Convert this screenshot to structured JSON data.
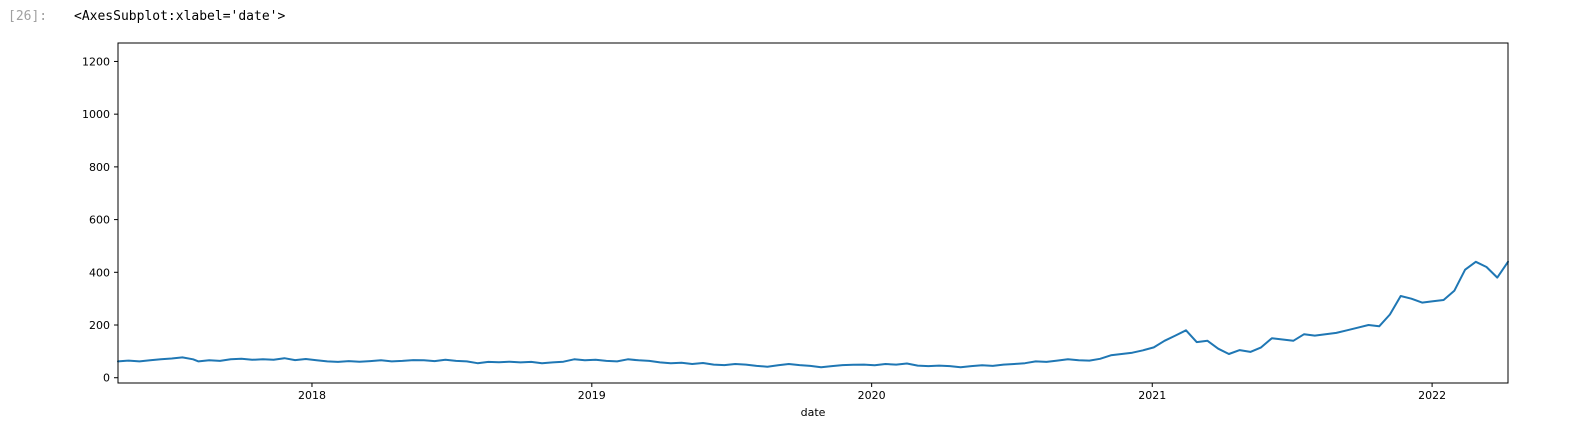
{
  "cell": {
    "prompt": "[26]:",
    "output_repr": "<AxesSubplot:xlabel='date'>"
  },
  "chart_data": {
    "type": "line",
    "title": "",
    "xlabel": "date",
    "ylabel": "",
    "xlim": [
      "2017-04-23",
      "2022-04-10"
    ],
    "ylim": [
      -20,
      1270
    ],
    "x_ticks": [
      {
        "date": "2018-01-01",
        "label": "2018"
      },
      {
        "date": "2019-01-01",
        "label": "2019"
      },
      {
        "date": "2020-01-01",
        "label": "2020"
      },
      {
        "date": "2021-01-01",
        "label": "2021"
      },
      {
        "date": "2022-01-01",
        "label": "2022"
      }
    ],
    "y_ticks": [
      0,
      200,
      400,
      600,
      800,
      1000,
      1200
    ],
    "grid": false,
    "legend": "none",
    "line_color": "#1f77b4",
    "series": [
      {
        "points": [
          [
            "2017-04-23",
            62
          ],
          [
            "2017-05-07",
            65
          ],
          [
            "2017-05-21",
            62
          ],
          [
            "2017-06-04",
            66
          ],
          [
            "2017-06-18",
            70
          ],
          [
            "2017-07-02",
            73
          ],
          [
            "2017-07-16",
            77
          ],
          [
            "2017-07-30",
            70
          ],
          [
            "2017-08-06",
            62
          ],
          [
            "2017-08-20",
            66
          ],
          [
            "2017-09-03",
            64
          ],
          [
            "2017-09-17",
            70
          ],
          [
            "2017-10-01",
            72
          ],
          [
            "2017-10-15",
            68
          ],
          [
            "2017-10-29",
            70
          ],
          [
            "2017-11-12",
            68
          ],
          [
            "2017-11-26",
            74
          ],
          [
            "2017-12-10",
            67
          ],
          [
            "2017-12-24",
            71
          ],
          [
            "2018-01-07",
            66
          ],
          [
            "2018-01-21",
            62
          ],
          [
            "2018-02-04",
            60
          ],
          [
            "2018-02-18",
            63
          ],
          [
            "2018-03-04",
            61
          ],
          [
            "2018-03-18",
            63
          ],
          [
            "2018-04-01",
            66
          ],
          [
            "2018-04-15",
            62
          ],
          [
            "2018-04-29",
            64
          ],
          [
            "2018-05-13",
            67
          ],
          [
            "2018-05-27",
            66
          ],
          [
            "2018-06-10",
            63
          ],
          [
            "2018-06-24",
            68
          ],
          [
            "2018-07-08",
            64
          ],
          [
            "2018-07-22",
            62
          ],
          [
            "2018-08-05",
            55
          ],
          [
            "2018-08-19",
            60
          ],
          [
            "2018-09-02",
            59
          ],
          [
            "2018-09-16",
            61
          ],
          [
            "2018-09-30",
            58
          ],
          [
            "2018-10-14",
            60
          ],
          [
            "2018-10-28",
            55
          ],
          [
            "2018-11-11",
            58
          ],
          [
            "2018-11-25",
            61
          ],
          [
            "2018-12-09",
            70
          ],
          [
            "2018-12-23",
            66
          ],
          [
            "2019-01-06",
            68
          ],
          [
            "2019-01-20",
            64
          ],
          [
            "2019-02-03",
            62
          ],
          [
            "2019-02-17",
            70
          ],
          [
            "2019-03-03",
            66
          ],
          [
            "2019-03-17",
            64
          ],
          [
            "2019-03-31",
            58
          ],
          [
            "2019-04-14",
            55
          ],
          [
            "2019-04-28",
            57
          ],
          [
            "2019-05-12",
            52
          ],
          [
            "2019-05-26",
            56
          ],
          [
            "2019-06-09",
            50
          ],
          [
            "2019-06-23",
            48
          ],
          [
            "2019-07-07",
            52
          ],
          [
            "2019-07-21",
            50
          ],
          [
            "2019-08-04",
            45
          ],
          [
            "2019-08-18",
            42
          ],
          [
            "2019-09-01",
            47
          ],
          [
            "2019-09-15",
            52
          ],
          [
            "2019-09-29",
            48
          ],
          [
            "2019-10-13",
            45
          ],
          [
            "2019-10-27",
            40
          ],
          [
            "2019-11-10",
            44
          ],
          [
            "2019-11-24",
            48
          ],
          [
            "2019-12-08",
            49
          ],
          [
            "2019-12-22",
            50
          ],
          [
            "2020-01-05",
            47
          ],
          [
            "2020-01-19",
            52
          ],
          [
            "2020-02-02",
            50
          ],
          [
            "2020-02-16",
            54
          ],
          [
            "2020-03-01",
            46
          ],
          [
            "2020-03-15",
            44
          ],
          [
            "2020-03-29",
            46
          ],
          [
            "2020-04-12",
            44
          ],
          [
            "2020-04-26",
            40
          ],
          [
            "2020-05-10",
            44
          ],
          [
            "2020-05-24",
            47
          ],
          [
            "2020-06-07",
            45
          ],
          [
            "2020-06-21",
            50
          ],
          [
            "2020-07-05",
            52
          ],
          [
            "2020-07-19",
            55
          ],
          [
            "2020-08-02",
            62
          ],
          [
            "2020-08-16",
            60
          ],
          [
            "2020-08-30",
            65
          ],
          [
            "2020-09-13",
            70
          ],
          [
            "2020-09-27",
            66
          ],
          [
            "2020-10-11",
            65
          ],
          [
            "2020-10-25",
            72
          ],
          [
            "2020-11-08",
            85
          ],
          [
            "2020-11-22",
            90
          ],
          [
            "2020-12-06",
            95
          ],
          [
            "2020-12-20",
            104
          ],
          [
            "2021-01-03",
            115
          ],
          [
            "2021-01-17",
            140
          ],
          [
            "2021-01-31",
            160
          ],
          [
            "2021-02-14",
            180
          ],
          [
            "2021-02-28",
            135
          ],
          [
            "2021-03-14",
            140
          ],
          [
            "2021-03-28",
            110
          ],
          [
            "2021-04-11",
            90
          ],
          [
            "2021-04-25",
            105
          ],
          [
            "2021-05-09",
            98
          ],
          [
            "2021-05-23",
            115
          ],
          [
            "2021-06-06",
            150
          ],
          [
            "2021-06-20",
            145
          ],
          [
            "2021-07-04",
            140
          ],
          [
            "2021-07-18",
            165
          ],
          [
            "2021-08-01",
            160
          ],
          [
            "2021-08-15",
            165
          ],
          [
            "2021-08-29",
            170
          ],
          [
            "2021-09-12",
            180
          ],
          [
            "2021-09-26",
            190
          ],
          [
            "2021-10-10",
            200
          ],
          [
            "2021-10-24",
            195
          ],
          [
            "2021-11-07",
            240
          ],
          [
            "2021-11-21",
            310
          ],
          [
            "2021-12-05",
            300
          ],
          [
            "2021-12-19",
            285
          ],
          [
            "2022-01-02",
            290
          ],
          [
            "2022-01-16",
            295
          ],
          [
            "2022-01-30",
            330
          ],
          [
            "2022-02-13",
            410
          ],
          [
            "2022-02-27",
            440
          ],
          [
            "2022-03-13",
            420
          ],
          [
            "2022-03-27",
            380
          ],
          [
            "2022-04-10",
            440
          ]
        ]
      }
    ]
  }
}
